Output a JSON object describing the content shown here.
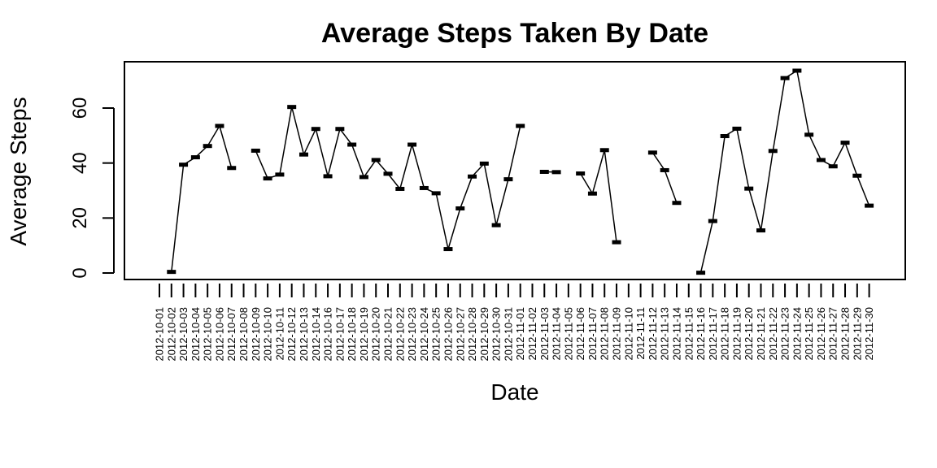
{
  "chart_data": {
    "type": "line",
    "title": "Average Steps Taken By Date",
    "xlabel": "Date",
    "ylabel": "Average Steps",
    "ylim": [
      0,
      74
    ],
    "y_ticks": [
      0,
      20,
      40,
      60
    ],
    "grid": false,
    "categories": [
      "2012-10-01",
      "2012-10-02",
      "2012-10-03",
      "2012-10-04",
      "2012-10-05",
      "2012-10-06",
      "2012-10-07",
      "2012-10-08",
      "2012-10-09",
      "2012-10-10",
      "2012-10-11",
      "2012-10-12",
      "2012-10-13",
      "2012-10-14",
      "2012-10-16",
      "2012-10-17",
      "2012-10-18",
      "2012-10-19",
      "2012-10-20",
      "2012-10-21",
      "2012-10-22",
      "2012-10-23",
      "2012-10-24",
      "2012-10-25",
      "2012-10-26",
      "2012-10-27",
      "2012-10-28",
      "2012-10-29",
      "2012-10-30",
      "2012-10-31",
      "2012-11-01",
      "2012-11-02",
      "2012-11-03",
      "2012-11-04",
      "2012-11-05",
      "2012-11-06",
      "2012-11-07",
      "2012-11-08",
      "2012-11-09",
      "2012-11-10",
      "2012-11-11",
      "2012-11-12",
      "2012-11-13",
      "2012-11-14",
      "2012-11-15",
      "2012-11-16",
      "2012-11-17",
      "2012-11-18",
      "2012-11-19",
      "2012-11-20",
      "2012-11-21",
      "2012-11-22",
      "2012-11-23",
      "2012-11-24",
      "2012-11-25",
      "2012-11-26",
      "2012-11-27",
      "2012-11-28",
      "2012-11-29",
      "2012-11-30"
    ],
    "series": [
      {
        "values": [
          null,
          0.4,
          39.4,
          42.1,
          46.2,
          53.5,
          38.2,
          null,
          44.5,
          34.4,
          35.8,
          60.4,
          43.1,
          52.4,
          35.2,
          52.4,
          46.7,
          34.9,
          41.1,
          36.1,
          30.6,
          46.7,
          30.9,
          29.0,
          8.7,
          23.5,
          35.1,
          39.8,
          17.4,
          34.1,
          53.5,
          null,
          36.8,
          36.7,
          null,
          36.2,
          28.9,
          44.7,
          11.2,
          null,
          null,
          43.8,
          37.4,
          25.5,
          null,
          0.1,
          18.9,
          49.8,
          52.5,
          30.7,
          15.5,
          44.4,
          70.9,
          73.6,
          50.3,
          41.1,
          38.8,
          47.4,
          35.4,
          24.5
        ]
      }
    ]
  }
}
